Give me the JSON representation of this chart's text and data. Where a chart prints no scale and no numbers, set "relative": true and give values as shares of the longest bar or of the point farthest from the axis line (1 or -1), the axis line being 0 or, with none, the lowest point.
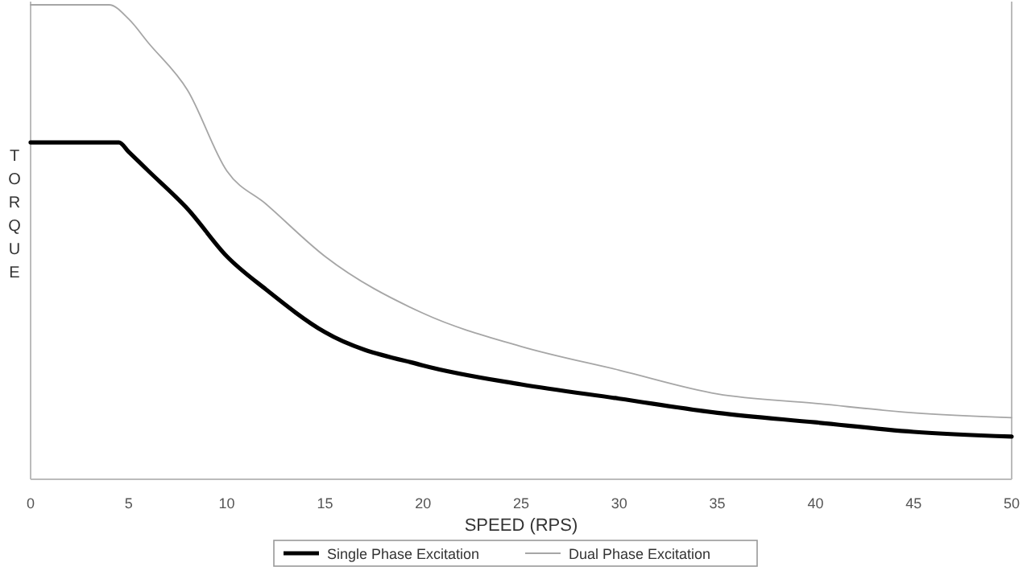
{
  "chart_data": {
    "type": "line",
    "relative": true,
    "xlabel": "SPEED (RPS)",
    "ylabel": "TORQUE",
    "xlim": [
      0,
      50
    ],
    "xticks": [
      0,
      5,
      10,
      15,
      20,
      25,
      30,
      35,
      40,
      45,
      50
    ],
    "legend": "bottom",
    "grid": false,
    "x": [
      0,
      3,
      4,
      5,
      6,
      8,
      10,
      12,
      15,
      20,
      25,
      30,
      35,
      40,
      45,
      50
    ],
    "series": [
      {
        "name": "Single Phase Excitation",
        "color": "#000000",
        "x": [
          0,
          3.5,
          4.5,
          5,
          6,
          8,
          10,
          12,
          15,
          20,
          25,
          30,
          35,
          40,
          45,
          50
        ],
        "values": [
          0.71,
          0.71,
          0.71,
          0.69,
          0.65,
          0.57,
          0.47,
          0.4,
          0.31,
          0.24,
          0.2,
          0.17,
          0.14,
          0.12,
          0.1,
          0.09
        ]
      },
      {
        "name": "Dual Phase Excitation",
        "color": "#a6a6a6",
        "values": [
          1,
          1,
          1,
          0.97,
          0.92,
          0.82,
          0.65,
          0.58,
          0.47,
          0.35,
          0.28,
          0.23,
          0.18,
          0.16,
          0.14,
          0.13
        ]
      }
    ]
  }
}
